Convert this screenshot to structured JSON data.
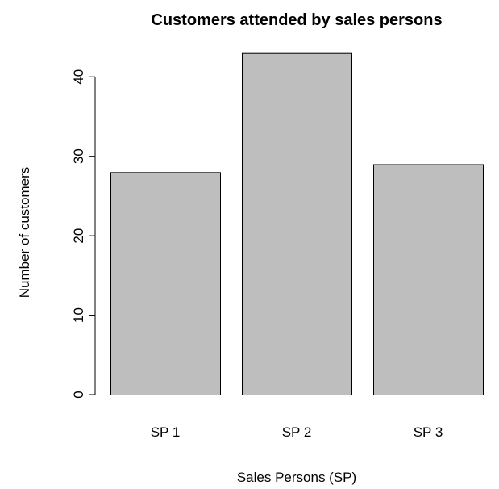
{
  "chart_data": {
    "type": "bar",
    "title": "Customers attended by sales persons",
    "xlabel": "Sales Persons (SP)",
    "ylabel": "Number of customers",
    "categories": [
      "SP 1",
      "SP 2",
      "SP 3"
    ],
    "values": [
      28,
      43,
      29
    ],
    "ylim": [
      0,
      45
    ],
    "yticks": [
      0,
      10,
      20,
      30,
      40
    ],
    "grid": false,
    "legend": "none",
    "colors": {
      "bar_fill": "#bebebe",
      "bar_stroke": "#000000",
      "axis": "#000000",
      "background": "#ffffff"
    }
  }
}
